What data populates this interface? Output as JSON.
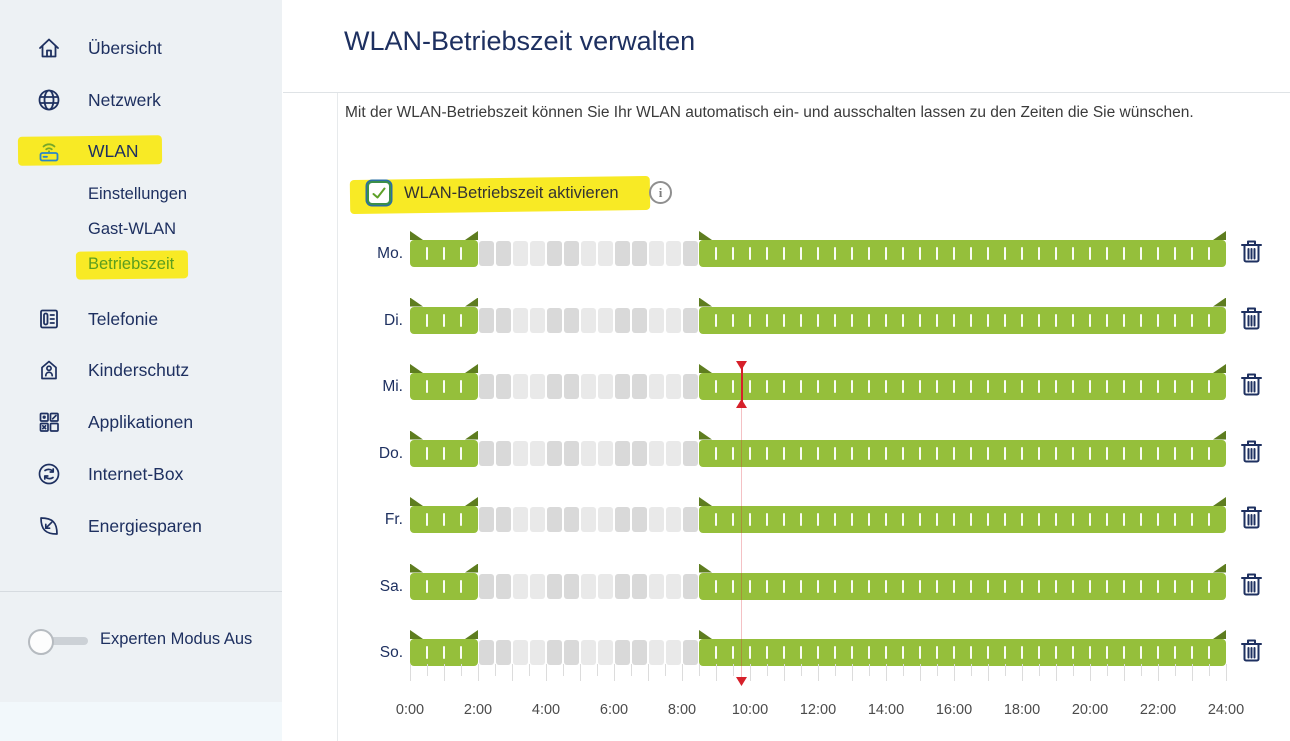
{
  "page": {
    "title": "WLAN-Betriebszeit verwalten",
    "description": "Mit der WLAN-Betriebszeit können Sie Ihr WLAN automatisch ein- und ausschalten lassen zu den Zeiten die Sie wünschen.",
    "checkbox_label": "WLAN-Betriebszeit aktivieren",
    "checkbox_checked": true
  },
  "sidebar": {
    "items": [
      {
        "label": "Übersicht",
        "icon": "home-icon"
      },
      {
        "label": "Netzwerk",
        "icon": "globe-icon"
      },
      {
        "label": "WLAN",
        "icon": "wifi-router-icon",
        "highlighted": true,
        "children": [
          {
            "label": "Einstellungen"
          },
          {
            "label": "Gast-WLAN"
          },
          {
            "label": "Betriebszeit",
            "active": true,
            "highlighted": true
          }
        ]
      },
      {
        "label": "Telefonie",
        "icon": "phone-icon"
      },
      {
        "label": "Kinderschutz",
        "icon": "parental-control-icon"
      },
      {
        "label": "Applikationen",
        "icon": "apps-grid-icon"
      },
      {
        "label": "Internet-Box",
        "icon": "internet-box-icon"
      },
      {
        "label": "Energiesparen",
        "icon": "leaf-icon"
      }
    ],
    "expert_mode": {
      "label": "Experten Modus Aus",
      "state": "off"
    }
  },
  "schedule": {
    "days": [
      "Mo.",
      "Di.",
      "Mi.",
      "Do.",
      "Fr.",
      "Sa.",
      "So."
    ],
    "on_periods_per_day": [
      [
        [
          0,
          2
        ],
        [
          8.5,
          24
        ]
      ],
      [
        [
          0,
          2
        ],
        [
          8.5,
          24
        ]
      ],
      [
        [
          0,
          2
        ],
        [
          8.5,
          24
        ]
      ],
      [
        [
          0,
          2
        ],
        [
          8.5,
          24
        ]
      ],
      [
        [
          0,
          2
        ],
        [
          8.5,
          24
        ]
      ],
      [
        [
          0,
          2
        ],
        [
          8.5,
          24
        ]
      ],
      [
        [
          0,
          2
        ],
        [
          8.5,
          24
        ]
      ]
    ],
    "off_period_per_day": [
      [
        2,
        8.5
      ],
      [
        2,
        8.5
      ],
      [
        2,
        8.5
      ],
      [
        2,
        8.5
      ],
      [
        2,
        8.5
      ],
      [
        2,
        8.5
      ],
      [
        2,
        8.5
      ]
    ],
    "axis_labels": [
      "0:00",
      "2:00",
      "4:00",
      "6:00",
      "8:00",
      "10:00",
      "12:00",
      "14:00",
      "16:00",
      "18:00",
      "20:00",
      "22:00",
      "24:00"
    ],
    "axis_range_hours": [
      0,
      24
    ],
    "tick_interval_hours": 0.5,
    "current_time_marker": {
      "day": "Mi.",
      "day_index": 2,
      "hour": 9.75
    },
    "colors": {
      "bar_green": "#95bf3b",
      "ear_green": "#5e7d1f",
      "off_cell_dark": "#d9d9d9",
      "off_cell_light": "#e9e9e9",
      "marker_red": "#d6202a",
      "navy": "#1e3060",
      "highlight_yellow": "#f8ea25"
    }
  }
}
